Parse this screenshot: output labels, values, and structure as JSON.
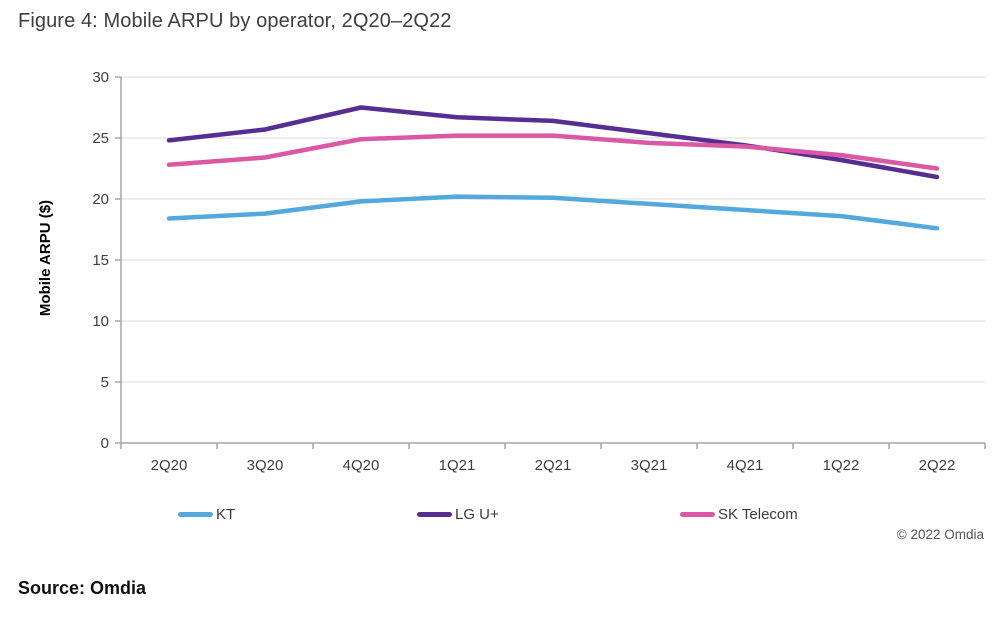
{
  "page": {
    "title": "Figure 4: Mobile ARPU by operator, 2Q20–2Q22",
    "source_label": "Source: Omdia",
    "copyright": "© 2022 Omdia"
  },
  "colors": {
    "kt_blue": "#53A9DD",
    "lg_purple": "#562E91",
    "sk_pink": "#DB58A4",
    "title_text": "#3F3F3F",
    "tick_text": "#404040",
    "axis_line": "#A6A6A6",
    "gridline": "#D9D9D9"
  },
  "chart_data": {
    "type": "line",
    "title": "Figure 4: Mobile ARPU by operator, 2Q20–2Q22",
    "categories": [
      "2Q20",
      "3Q20",
      "4Q20",
      "1Q21",
      "2Q21",
      "3Q21",
      "4Q21",
      "1Q22",
      "2Q22"
    ],
    "series": [
      {
        "name": "KT",
        "color": "#53A9DD",
        "values": [
          18.4,
          18.8,
          19.8,
          20.2,
          20.1,
          19.6,
          19.1,
          18.6,
          17.6
        ]
      },
      {
        "name": "LG U+",
        "color": "#562E91",
        "values": [
          24.8,
          25.7,
          27.5,
          26.7,
          26.4,
          25.4,
          24.4,
          23.2,
          21.8
        ]
      },
      {
        "name": "SK Telecom",
        "color": "#DB58A4",
        "values": [
          22.8,
          23.4,
          24.9,
          25.2,
          25.2,
          24.6,
          24.3,
          23.6,
          22.5
        ]
      }
    ],
    "xlabel": "",
    "ylabel": "Mobile ARPU ($)",
    "ylim": [
      0,
      30
    ],
    "ytick_step": 5,
    "grid": true,
    "legend_position": "bottom",
    "legend_entries": [
      "KT",
      "LG U+",
      "SK Telecom"
    ]
  }
}
